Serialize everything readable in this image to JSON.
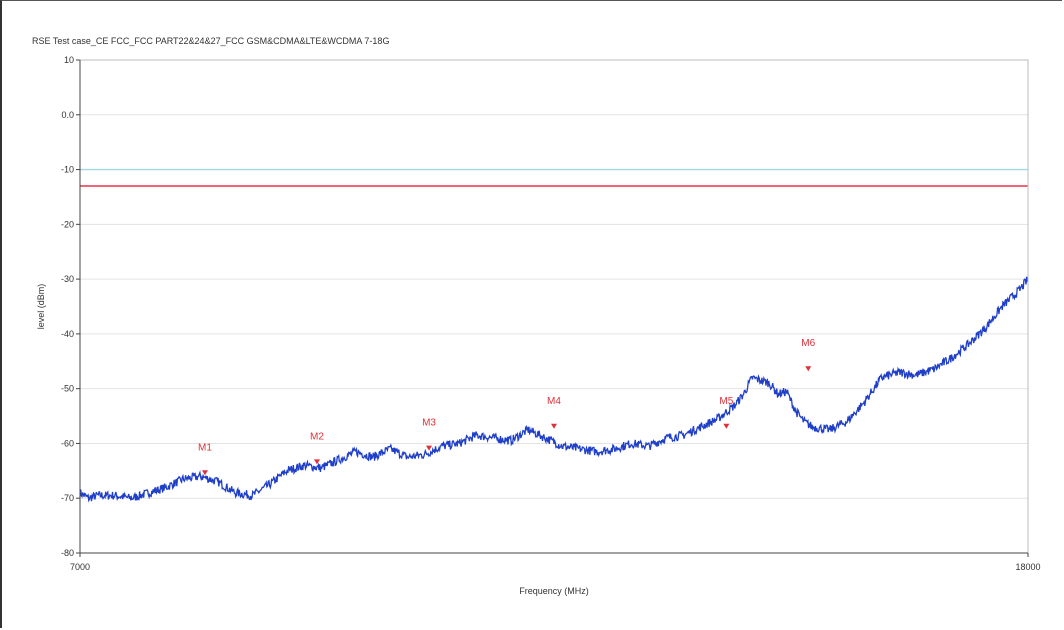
{
  "chart_data": {
    "type": "line",
    "title": "RSE Test case_CE FCC_FCC PART22&24&27_FCC GSM&CDMA&LTE&WCDMA 7-18G",
    "xlabel": "Frequency (MHz)",
    "ylabel": "level (dBm)",
    "xlim": [
      7000,
      18000
    ],
    "ylim": [
      -80,
      10
    ],
    "x_tick_labels": [
      "7000",
      "18000"
    ],
    "y_tick_labels": [
      "10",
      "0.0",
      "-10",
      "-20",
      "-30",
      "-40",
      "-50",
      "-60",
      "-70",
      "-80"
    ],
    "grid": true,
    "limit_lines": [
      {
        "value": -13,
        "color": "#e8344a"
      },
      {
        "value": -10,
        "color": "#9fd8e0"
      }
    ],
    "series": [
      {
        "color": "#1f3fc8",
        "x": [
          7000,
          7100,
          7200,
          7400,
          7600,
          7800,
          8000,
          8200,
          8400,
          8500,
          8600,
          8800,
          9000,
          9200,
          9400,
          9600,
          9800,
          10000,
          10200,
          10400,
          10600,
          10800,
          11000,
          11200,
          11400,
          11600,
          11800,
          12000,
          12200,
          12400,
          12600,
          12800,
          13000,
          13200,
          13400,
          13600,
          13800,
          14000,
          14200,
          14400,
          14600,
          14700,
          14800,
          14900,
          15000,
          15100,
          15200,
          15300,
          15400,
          15500,
          15700,
          15900,
          16100,
          16300,
          16500,
          16700,
          16900,
          17100,
          17300,
          17500,
          17700,
          17900,
          18000
        ],
        "y": [
          -69,
          -70,
          -69.5,
          -69.5,
          -70,
          -69,
          -68,
          -66.5,
          -66,
          -66.5,
          -67,
          -69,
          -69.5,
          -67.5,
          -65,
          -64,
          -64.5,
          -63,
          -61.5,
          -62.5,
          -61,
          -62.5,
          -62,
          -60.5,
          -60,
          -58.5,
          -59,
          -59.5,
          -57.5,
          -59,
          -60.5,
          -61,
          -61.5,
          -61,
          -60,
          -60.5,
          -59,
          -58.5,
          -57,
          -55.5,
          -53,
          -51,
          -48,
          -48.5,
          -49,
          -51,
          -50.5,
          -54,
          -56,
          -57,
          -57.5,
          -56,
          -52.5,
          -48,
          -47,
          -47.5,
          -46.5,
          -44.5,
          -42,
          -39,
          -35,
          -32,
          -30
        ]
      }
    ],
    "markers": [
      {
        "label": "M1",
        "x": 8450,
        "y": -66
      },
      {
        "label": "M2",
        "x": 9750,
        "y": -64
      },
      {
        "label": "M3",
        "x": 11050,
        "y": -61.5
      },
      {
        "label": "M4",
        "x": 12500,
        "y": -57.5
      },
      {
        "label": "M5",
        "x": 14500,
        "y": -57.5
      },
      {
        "label": "M6",
        "x": 15450,
        "y": -47
      }
    ]
  }
}
